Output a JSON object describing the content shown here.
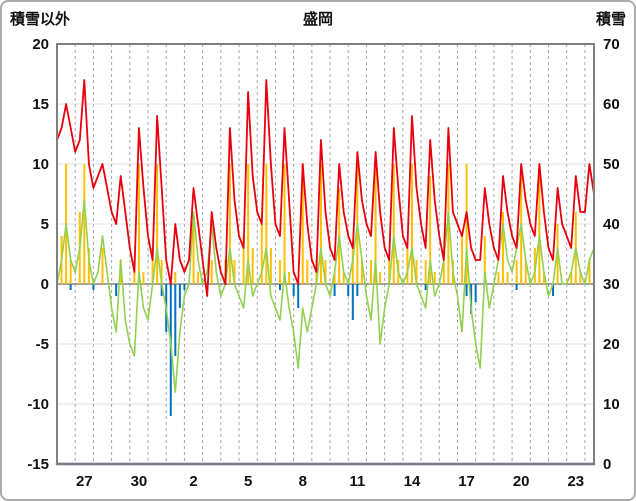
{
  "chart_data": {
    "type": "line",
    "title": "盛岡",
    "left_axis_title": "積雪以外",
    "right_axis_title": "積雪",
    "x_range": [
      0,
      29.5
    ],
    "x_step": 0.25,
    "x_grid_step": 1,
    "x_ticks": {
      "positions": [
        1.5,
        4.5,
        7.5,
        10.5,
        13.5,
        16.5,
        19.5,
        22.5,
        25.5,
        28.5
      ],
      "labels": [
        "27",
        "30",
        "2",
        "5",
        "8",
        "11",
        "14",
        "17",
        "20",
        "23"
      ]
    },
    "left_axis": {
      "range": [
        -15,
        20
      ],
      "ticks": [
        20,
        15,
        10,
        5,
        0,
        -5,
        -10,
        -15
      ]
    },
    "right_axis": {
      "range": [
        0,
        70
      ],
      "ticks": [
        70,
        60,
        50,
        40,
        30,
        20,
        10,
        0
      ]
    },
    "colors": {
      "red_line": "#e8000d",
      "green_line": "#92d050",
      "orange_bars": "#ffc000",
      "blue_bars": "#0070c0",
      "purple_line": "#7030a0",
      "grid": "#a6a6a6",
      "frame": "#808080"
    },
    "series": [
      {
        "name": "orange-bars",
        "type": "bar",
        "axis": "left",
        "color": "#ffc000",
        "width": 2,
        "values": [
          0,
          4,
          10,
          2,
          0,
          6,
          10,
          3,
          0,
          0,
          3,
          0,
          0,
          0,
          2,
          0,
          0,
          2,
          10,
          1,
          0,
          3,
          10,
          2,
          0,
          0,
          1,
          0,
          0,
          0,
          6,
          1,
          0,
          0,
          2,
          0,
          0,
          2,
          10,
          2,
          0,
          4,
          10,
          3,
          0,
          5,
          10,
          3,
          0,
          2,
          10,
          1,
          0,
          0,
          10,
          2,
          0,
          2,
          10,
          2,
          0,
          1,
          8,
          1,
          0,
          3,
          10,
          2,
          0,
          2,
          10,
          1,
          0,
          2,
          10,
          2,
          0,
          3,
          10,
          2,
          0,
          2,
          9,
          1,
          0,
          2,
          10,
          2,
          0,
          4,
          10,
          0,
          0,
          0,
          4,
          0,
          0,
          1,
          6,
          1,
          0,
          2,
          10,
          2,
          0,
          3,
          10,
          1,
          0,
          0,
          5,
          0,
          0,
          1,
          6,
          1,
          0,
          2,
          4
        ]
      },
      {
        "name": "blue-bars",
        "type": "bar",
        "axis": "left",
        "color": "#0070c0",
        "width": 2,
        "values": [
          0,
          0,
          0,
          -0.5,
          0,
          0,
          0,
          0,
          -0.5,
          0,
          0,
          0,
          0,
          -1,
          0,
          0,
          0,
          0,
          0,
          0,
          0,
          0,
          0,
          -1,
          -4,
          -11,
          -6,
          -2,
          -0.5,
          0,
          0,
          0,
          0,
          0,
          0,
          0,
          0,
          0,
          0,
          0,
          0,
          0,
          0,
          0,
          0,
          0,
          0,
          0,
          0,
          -0.5,
          0,
          0,
          -1,
          -2,
          0,
          0,
          0,
          0,
          0,
          0,
          0,
          -1,
          0,
          0,
          -1,
          -3,
          -1,
          0,
          0,
          0,
          0,
          0,
          0,
          0,
          0,
          0,
          0,
          0,
          0,
          0,
          0,
          -0.5,
          0,
          0,
          0,
          0,
          0,
          0,
          0,
          0,
          -1,
          -2.5,
          -1.5,
          0,
          0,
          0,
          0,
          0,
          0,
          0,
          0,
          -0.5,
          0,
          0,
          0,
          0,
          0,
          0,
          0,
          -1,
          0,
          0,
          0,
          0,
          0,
          0,
          0,
          0,
          0
        ]
      },
      {
        "name": "green-line",
        "type": "line",
        "axis": "left",
        "color": "#92d050",
        "width": 1.6,
        "values": [
          0,
          2,
          5,
          2,
          1,
          3,
          7,
          2,
          0,
          1,
          4,
          1,
          -2,
          -4,
          2,
          -3,
          -5,
          -6,
          1,
          -2,
          -3,
          0,
          3,
          0,
          -2,
          -5,
          -9,
          -4,
          -1,
          0,
          6,
          2,
          0,
          1,
          5,
          1,
          -1,
          0,
          3,
          0,
          -1,
          -2,
          2,
          -1,
          0,
          1,
          3,
          -1,
          -2,
          -3,
          1,
          -2,
          -4,
          -7,
          -2,
          -4,
          -2,
          0,
          3,
          0,
          -1,
          1,
          4,
          1,
          0,
          2,
          5,
          2,
          -1,
          -3,
          2,
          -5,
          -2,
          0,
          4,
          1,
          0,
          1,
          3,
          0,
          -1,
          -2,
          2,
          -1,
          0,
          2,
          6,
          1,
          -1,
          -4,
          3,
          -2,
          -5,
          -7,
          1,
          -2,
          0,
          2,
          5,
          2,
          1,
          3,
          5,
          2,
          0,
          1,
          4,
          1,
          -1,
          0,
          3,
          0,
          0,
          1,
          3,
          1,
          0,
          2,
          3
        ]
      },
      {
        "name": "red-line",
        "type": "line",
        "axis": "left",
        "color": "#e8000d",
        "width": 1.8,
        "values": [
          12,
          13,
          15,
          13,
          11,
          12,
          17,
          10,
          8,
          9,
          10,
          8,
          6,
          5,
          9,
          6,
          3,
          1,
          13,
          8,
          4,
          2,
          14,
          8,
          2,
          0,
          5,
          2,
          1,
          2,
          8,
          5,
          2,
          -1,
          6,
          3,
          1,
          0,
          13,
          7,
          4,
          3,
          16,
          9,
          6,
          5,
          17,
          10,
          5,
          4,
          13,
          7,
          1,
          0,
          10,
          5,
          2,
          1,
          12,
          6,
          3,
          2,
          10,
          6,
          4,
          3,
          11,
          7,
          5,
          4,
          11,
          6,
          3,
          2,
          13,
          8,
          4,
          3,
          14,
          8,
          5,
          3,
          12,
          7,
          4,
          2,
          13,
          6,
          5,
          4,
          6,
          3,
          2,
          2,
          8,
          5,
          3,
          2,
          9,
          6,
          4,
          3,
          10,
          7,
          5,
          4,
          10,
          6,
          3,
          2,
          8,
          5,
          4,
          3,
          9,
          6,
          6,
          10,
          7.5
        ]
      },
      {
        "name": "purple-line",
        "type": "line",
        "axis": "right",
        "color": "#7030a0",
        "width": 2.5,
        "x": [
          0,
          29.5
        ],
        "values": [
          0,
          0
        ]
      }
    ]
  }
}
